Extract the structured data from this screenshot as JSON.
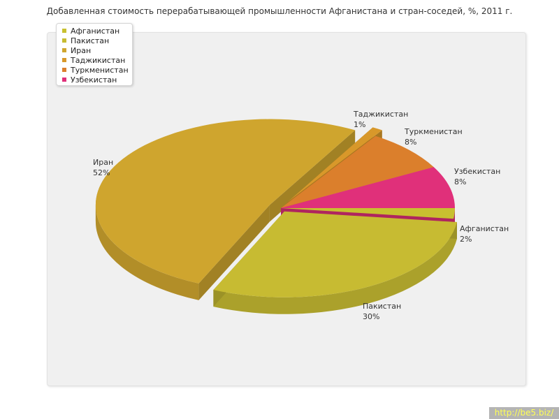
{
  "chart_data": {
    "type": "pie",
    "title": "Добавленная стоимость перерабатывающей промышленности Афганистана и стран-соседей, %, 2011 г.",
    "slices": [
      {
        "name": "Афганистан",
        "value": 2,
        "label": "2%",
        "color": "#c8c030"
      },
      {
        "name": "Пакистан",
        "value": 30,
        "label": "30%",
        "color": "#c7bb32"
      },
      {
        "name": "Иран",
        "value": 52,
        "label": "52%",
        "color": "#cfa52e"
      },
      {
        "name": "Таджикистан",
        "value": 1,
        "label": "1%",
        "color": "#d8982a"
      },
      {
        "name": "Туркменистан",
        "value": 8,
        "label": "8%",
        "color": "#db7f2c"
      },
      {
        "name": "Узбекистан",
        "value": 8,
        "label": "8%",
        "color": "#e0307a"
      }
    ],
    "legend_position": "top-left",
    "three_d": true
  },
  "watermark": "http://be5.biz/"
}
